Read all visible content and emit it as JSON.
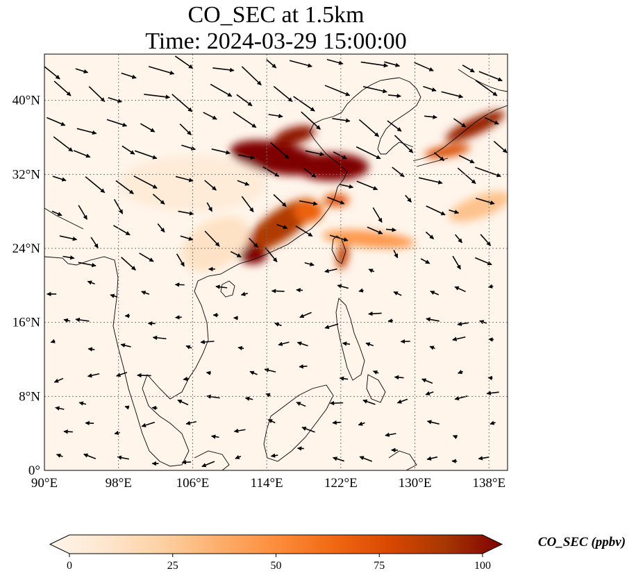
{
  "title": {
    "line1": "CO_SEC at 1.5km",
    "line2": "Time: 2024-03-29 15:00:00"
  },
  "map": {
    "projection": "PlateCarree",
    "lon_range": [
      90,
      140
    ],
    "lat_range": [
      0,
      45
    ],
    "gridlines": "dotted",
    "lon_ticks": [
      {
        "value": 90,
        "label": "90°E"
      },
      {
        "value": 98,
        "label": "98°E"
      },
      {
        "value": 106,
        "label": "106°E"
      },
      {
        "value": 114,
        "label": "114°E"
      },
      {
        "value": 122,
        "label": "122°E"
      },
      {
        "value": 130,
        "label": "130°E"
      },
      {
        "value": 138,
        "label": "138°E"
      }
    ],
    "lat_ticks": [
      {
        "value": 0,
        "label": "0°"
      },
      {
        "value": 8,
        "label": "8°N"
      },
      {
        "value": 16,
        "label": "16°N"
      },
      {
        "value": 24,
        "label": "24°N"
      },
      {
        "value": 32,
        "label": "32°N"
      },
      {
        "value": 40,
        "label": "40°N"
      }
    ],
    "background_color": "#fff5eb",
    "plumes": [
      {
        "lon": 115,
        "lat": 33.8,
        "rx": 5.0,
        "ry": 1.7,
        "rot": 10,
        "level": 100
      },
      {
        "lon": 121,
        "lat": 32.8,
        "rx": 4.0,
        "ry": 1.5,
        "rot": 0,
        "level": 100
      },
      {
        "lon": 117,
        "lat": 36.2,
        "rx": 2.3,
        "ry": 0.9,
        "rot": -15,
        "level": 95
      },
      {
        "lon": 136.5,
        "lat": 37.2,
        "rx": 3.5,
        "ry": 0.9,
        "rot": -25,
        "level": 92
      },
      {
        "lon": 133.5,
        "lat": 34.5,
        "rx": 2.5,
        "ry": 0.6,
        "rot": -10,
        "level": 75
      },
      {
        "lon": 115.5,
        "lat": 26.5,
        "rx": 4.5,
        "ry": 1.6,
        "rot": -35,
        "level": 85
      },
      {
        "lon": 112.5,
        "lat": 23.3,
        "rx": 1.5,
        "ry": 1.0,
        "rot": 0,
        "level": 100
      },
      {
        "lon": 118.5,
        "lat": 28.0,
        "rx": 1.6,
        "ry": 1.2,
        "rot": 0,
        "level": 65
      },
      {
        "lon": 121.5,
        "lat": 29.2,
        "rx": 1.4,
        "ry": 0.7,
        "rot": 0,
        "level": 70
      },
      {
        "lon": 122.2,
        "lat": 23.2,
        "rx": 0.6,
        "ry": 1.5,
        "rot": 10,
        "level": 80
      },
      {
        "lon": 125,
        "lat": 25.0,
        "rx": 5.0,
        "ry": 0.9,
        "rot": 5,
        "level": 45
      },
      {
        "lon": 108.5,
        "lat": 24.5,
        "rx": 4.0,
        "ry": 2.5,
        "rot": -30,
        "level": 15
      },
      {
        "lon": 137,
        "lat": 28.5,
        "rx": 3.5,
        "ry": 1.2,
        "rot": -20,
        "level": 30
      },
      {
        "lon": 106,
        "lat": 31.0,
        "rx": 8.0,
        "ry": 3.0,
        "rot": 0,
        "level": 8
      }
    ],
    "wind_field": {
      "rows": 15,
      "cols": 15
    }
  },
  "colorbar": {
    "label": "CO_SEC (ppbv)",
    "range": [
      0,
      100
    ],
    "extend": "both",
    "ticks": [
      {
        "value": 0,
        "label": "0"
      },
      {
        "value": 25,
        "label": "25"
      },
      {
        "value": 50,
        "label": "50"
      },
      {
        "value": 75,
        "label": "75"
      },
      {
        "value": 100,
        "label": "100"
      }
    ],
    "colormap_stops": [
      "#fff5eb",
      "#fee6ce",
      "#fdd0a2",
      "#fdae6b",
      "#fd8d3c",
      "#f16913",
      "#d94801",
      "#a63603",
      "#7f0000"
    ]
  }
}
